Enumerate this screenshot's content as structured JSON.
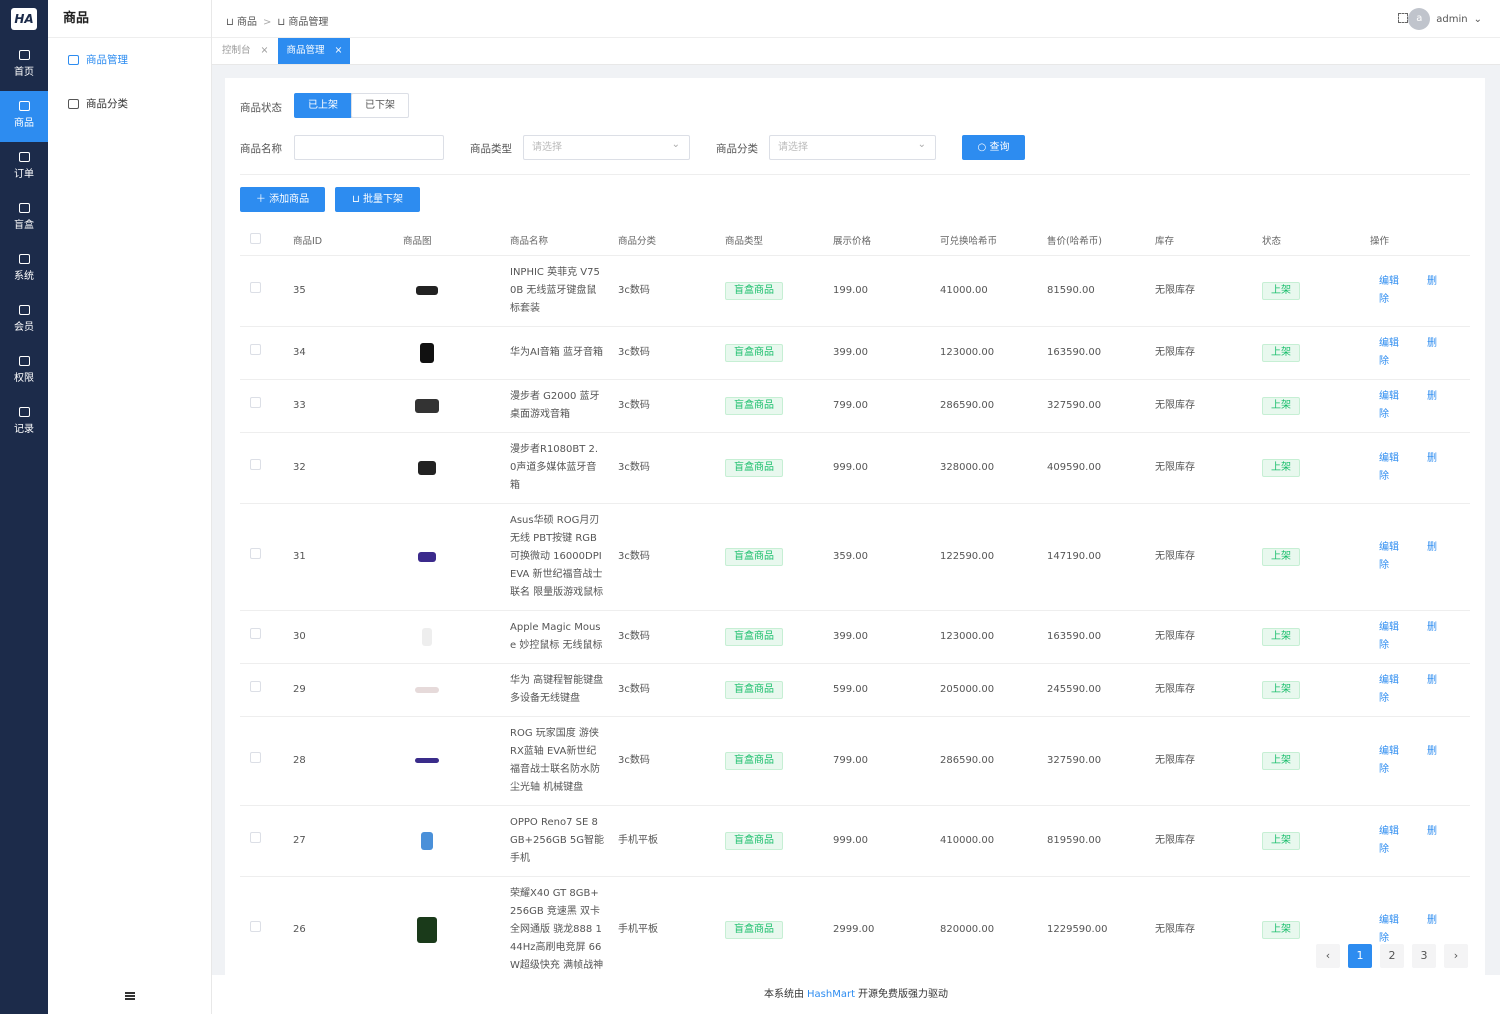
{
  "sidebar": {
    "logo": "HA",
    "items": [
      "首页",
      "商品",
      "订单",
      "盲盒",
      "系统",
      "会员",
      "权限",
      "记录"
    ],
    "active": 1
  },
  "submenu": {
    "title": "商品",
    "items": [
      "商品管理",
      "商品分类"
    ],
    "active": 0
  },
  "header": {
    "breadcrumb": [
      "商品",
      "商品管理"
    ],
    "avatar": "a",
    "user": "admin"
  },
  "tabs": {
    "items": [
      "控制台",
      "商品管理"
    ],
    "active": 1
  },
  "filters": {
    "status_label": "商品状态",
    "status_options": [
      "已上架",
      "已下架"
    ],
    "name_label": "商品名称",
    "type_label": "商品类型",
    "type_placeholder": "请选择",
    "category_label": "商品分类",
    "category_placeholder": "请选择",
    "search": "查询"
  },
  "actions": [
    "添加商品",
    "批量下架"
  ],
  "table": {
    "columns": [
      "商品ID",
      "商品图",
      "商品名称",
      "商品分类",
      "商品类型",
      "展示价格",
      "可兑换哈希币",
      "售价(哈希币)",
      "库存",
      "状态",
      "操作"
    ],
    "rows": [
      [
        "35",
        "INPHIC 英菲克 V750B 无线蓝牙键盘鼠标套装",
        "3c数码",
        "盲盒商品",
        "199.00",
        "41000.00",
        "81590.00",
        "无限库存",
        "上架"
      ],
      [
        "34",
        "华为AI音箱 蓝牙音箱",
        "3c数码",
        "盲盒商品",
        "399.00",
        "123000.00",
        "163590.00",
        "无限库存",
        "上架"
      ],
      [
        "33",
        "漫步者 G2000 蓝牙桌面游戏音箱",
        "3c数码",
        "盲盒商品",
        "799.00",
        "286590.00",
        "327590.00",
        "无限库存",
        "上架"
      ],
      [
        "32",
        "漫步者R1080BT 2.0声道多媒体蓝牙音箱",
        "3c数码",
        "盲盒商品",
        "999.00",
        "328000.00",
        "409590.00",
        "无限库存",
        "上架"
      ],
      [
        "31",
        "Asus华硕 ROG月刃无线 PBT按键 RGB可换微动 16000DPI EVA 新世纪福音战士联名 限量版游戏鼠标",
        "3c数码",
        "盲盒商品",
        "359.00",
        "122590.00",
        "147190.00",
        "无限库存",
        "上架"
      ],
      [
        "30",
        "Apple Magic Mouse 妙控鼠标 无线鼠标",
        "3c数码",
        "盲盒商品",
        "399.00",
        "123000.00",
        "163590.00",
        "无限库存",
        "上架"
      ],
      [
        "29",
        "华为 高键程智能键盘 多设备无线键盘",
        "3c数码",
        "盲盒商品",
        "599.00",
        "205000.00",
        "245590.00",
        "无限库存",
        "上架"
      ],
      [
        "28",
        "ROG 玩家国度 游侠RX蓝轴 EVA新世纪福音战士联名防水防尘光轴 机械键盘",
        "3c数码",
        "盲盒商品",
        "799.00",
        "286590.00",
        "327590.00",
        "无限库存",
        "上架"
      ],
      [
        "27",
        "OPPO Reno7 SE 8GB+256GB 5G智能手机",
        "手机平板",
        "盲盒商品",
        "999.00",
        "410000.00",
        "819590.00",
        "无限库存",
        "上架"
      ],
      [
        "26",
        "荣耀X40 GT 8GB+256GB 竞速黑 双卡全网通版 骁龙888 144Hz高刷电竞屏 66W超级快充 满帧战神",
        "手机平板",
        "盲盒商品",
        "2999.00",
        "820000.00",
        "1229590.00",
        "无限库存",
        "上架"
      ]
    ],
    "row_actions": [
      "编辑",
      "删除"
    ]
  },
  "pagination": {
    "pages": [
      1,
      2,
      3
    ],
    "active": 0
  },
  "footer": {
    "before": "本系统由",
    "link": "HashMart",
    "after": "开源免费版强力驱动"
  }
}
